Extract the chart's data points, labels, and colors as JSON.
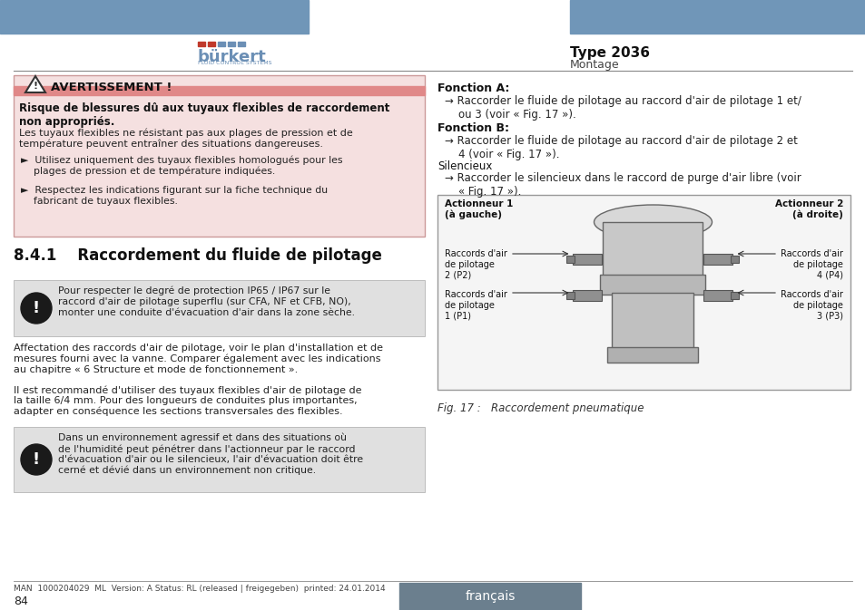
{
  "bg_color": "#ffffff",
  "header_bar_color": "#7096b8",
  "logo_color": "#6b8fb5",
  "title_text": "Type 2036",
  "subtitle_text": "Montage",
  "footer_line_text": "MAN  1000204029  ML  Version: A Status: RL (released | freigegeben)  printed: 24.01.2014",
  "page_number": "84",
  "language_box_text": "français",
  "language_box_color": "#6b7f8e",
  "warning_box_bg": "#f5e0e0",
  "warning_box_border": "#cc9999",
  "warning_title": "AVERTISSEMENT !",
  "warning_bold_text": "Risque de blessures dû aux tuyaux flexibles de raccordement\nnon appropriés.",
  "warning_body": "Les tuyaux flexibles ne résistant pas aux plages de pression et de\ntempérature peuvent entraîner des situations dangereuses.",
  "warning_bullet1": "►  Utilisez uniquement des tuyaux flexibles homologués pour les\n    plages de pression et de température indiquées.",
  "warning_bullet2": "►  Respectez les indications figurant sur la fiche technique du\n    fabricant de tuyaux flexibles.",
  "section_title": "8.4.1    Raccordement du fluide de pilotage",
  "note1_bg": "#e0e0e0",
  "note1_text": "Pour respecter le degré de protection IP65 / IP67 sur le\nraccord d'air de pilotage superflu (sur CFA, NF et CFB, NO),\nmonter une conduite d'évacuation d'air dans la zone sèche.",
  "body_para1": "Affectation des raccords d'air de pilotage, voir le plan d'installation et de\nmesures fourni avec la vanne. Comparer également avec les indications\nau chapitre « 6 Structure et mode de fonctionnement ».",
  "body_para2": "Il est recommandé d'utiliser des tuyaux flexibles d'air de pilotage de\nla taille 6/4 mm. Pour des longueurs de conduites plus importantes,\nadapter en conséquence les sections transversales des flexibles.",
  "note2_bg": "#e0e0e0",
  "note2_text": "Dans un environnement agressif et dans des situations où\nde l'humidité peut pénétrer dans l'actionneur par le raccord\nd'évacuation d'air ou le silencieux, l'air d'évacuation doit être\ncerné et dévié dans un environnement non critique.",
  "right_title1": "Fonction A:",
  "right_body1": "→ Raccorder le fluide de pilotage au raccord d'air de pilotage 1 et/\n    ou 3 (voir « Fig. 17 »).",
  "right_title2": "Fonction B:",
  "right_body2": "→ Raccorder le fluide de pilotage au raccord d'air de pilotage 2 et\n    4 (voir « Fig. 17 »).",
  "right_title3": "Silencieux",
  "right_body3": "→ Raccorder le silencieux dans le raccord de purge d'air libre (voir\n    « Fig. 17 »).",
  "fig_caption": "Fig. 17 :   Raccordement pneumatique",
  "fig_label_tl": "Actionneur 1\n(à gauche)",
  "fig_label_tr": "Actionneur 2\n(à droite)",
  "fig_label_ml1": "Raccords d'air\nde pilotage\n2 (P2)",
  "fig_label_mr1": "Raccords d'air\nde pilotage\n4 (P4)",
  "fig_label_ml2": "Raccords d'air\nde pilotage\n1 (P1)",
  "fig_label_mr2": "Raccords d'air\nde pilotage\n3 (P3)"
}
